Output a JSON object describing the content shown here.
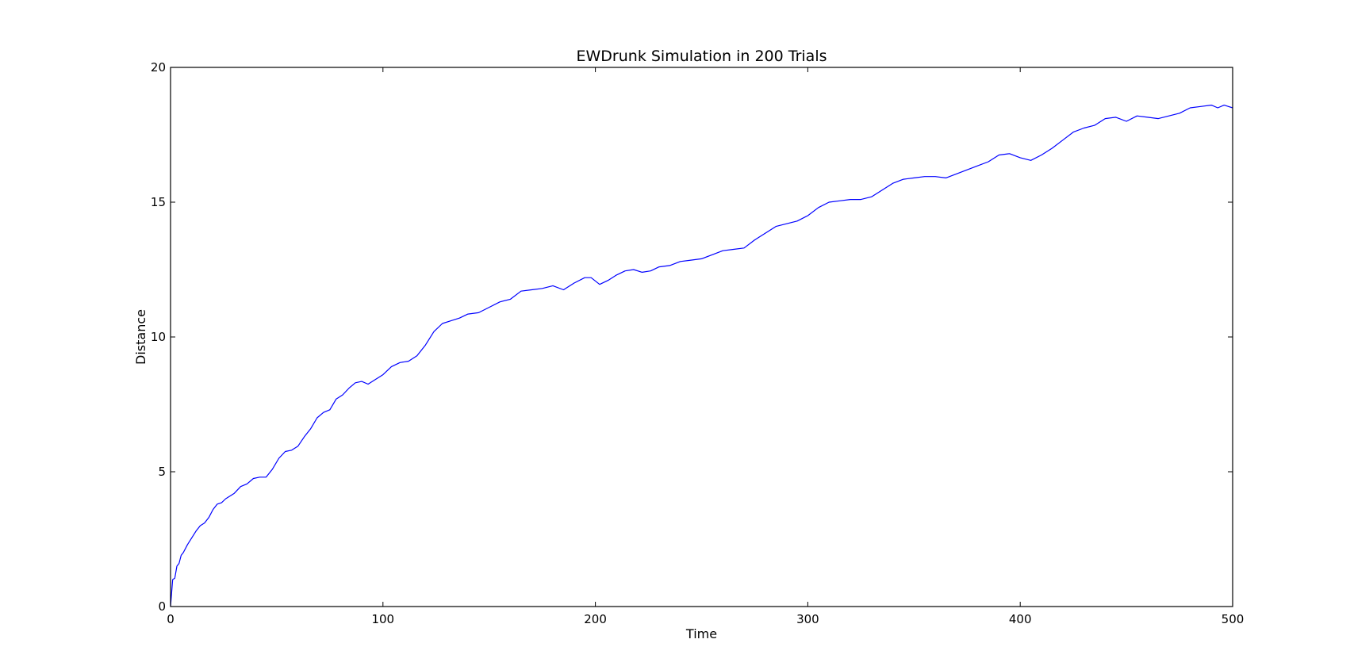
{
  "chart_data": {
    "type": "line",
    "title": "EWDrunk Simulation in 200 Trials",
    "xlabel": "Time",
    "ylabel": "Distance",
    "xlim": [
      0,
      500
    ],
    "ylim": [
      0,
      20
    ],
    "xticks": [
      0,
      100,
      200,
      300,
      400,
      500
    ],
    "yticks": [
      0,
      5,
      10,
      15,
      20
    ],
    "grid": false,
    "line_color": "#0000ff",
    "series": [
      {
        "x": [
          0,
          1,
          2,
          3,
          4,
          5,
          6,
          8,
          10,
          12,
          14,
          16,
          18,
          20,
          22,
          24,
          26,
          28,
          30,
          33,
          36,
          39,
          42,
          45,
          48,
          51,
          54,
          57,
          60,
          63,
          66,
          69,
          72,
          75,
          78,
          81,
          84,
          87,
          90,
          93,
          96,
          100,
          104,
          108,
          112,
          116,
          120,
          124,
          128,
          132,
          136,
          140,
          145,
          150,
          155,
          160,
          165,
          170,
          175,
          180,
          185,
          190,
          195,
          198,
          202,
          206,
          210,
          214,
          218,
          222,
          226,
          230,
          235,
          240,
          245,
          250,
          255,
          260,
          265,
          270,
          275,
          280,
          285,
          290,
          295,
          300,
          305,
          310,
          315,
          320,
          325,
          330,
          335,
          340,
          345,
          350,
          355,
          360,
          365,
          370,
          375,
          380,
          385,
          390,
          395,
          400,
          405,
          410,
          415,
          420,
          425,
          430,
          435,
          440,
          445,
          450,
          455,
          460,
          465,
          470,
          475,
          480,
          485,
          490,
          493,
          496,
          498,
          500
        ],
        "y": [
          0,
          1.0,
          1.05,
          1.5,
          1.6,
          1.9,
          2.0,
          2.3,
          2.55,
          2.8,
          3.0,
          3.1,
          3.3,
          3.6,
          3.8,
          3.85,
          4.0,
          4.1,
          4.2,
          4.45,
          4.55,
          4.75,
          4.8,
          4.8,
          5.1,
          5.5,
          5.75,
          5.8,
          5.95,
          6.3,
          6.6,
          7.0,
          7.2,
          7.3,
          7.7,
          7.85,
          8.1,
          8.3,
          8.35,
          8.25,
          8.4,
          8.6,
          8.9,
          9.05,
          9.1,
          9.3,
          9.7,
          10.2,
          10.5,
          10.6,
          10.7,
          10.85,
          10.9,
          11.1,
          11.3,
          11.4,
          11.7,
          11.75,
          11.8,
          11.9,
          11.75,
          12.0,
          12.2,
          12.2,
          11.95,
          12.1,
          12.3,
          12.45,
          12.5,
          12.4,
          12.45,
          12.6,
          12.65,
          12.8,
          12.85,
          12.9,
          13.05,
          13.2,
          13.25,
          13.3,
          13.6,
          13.85,
          14.1,
          14.2,
          14.3,
          14.5,
          14.8,
          15.0,
          15.05,
          15.1,
          15.1,
          15.2,
          15.45,
          15.7,
          15.85,
          15.9,
          15.95,
          15.95,
          15.9,
          16.05,
          16.2,
          16.35,
          16.5,
          16.75,
          16.8,
          16.65,
          16.55,
          16.75,
          17.0,
          17.3,
          17.6,
          17.75,
          17.85,
          18.1,
          18.15,
          18.0,
          18.2,
          18.15,
          18.1,
          18.2,
          18.3,
          18.5,
          18.55,
          18.6,
          18.5,
          18.6,
          18.55,
          18.5
        ]
      }
    ]
  }
}
